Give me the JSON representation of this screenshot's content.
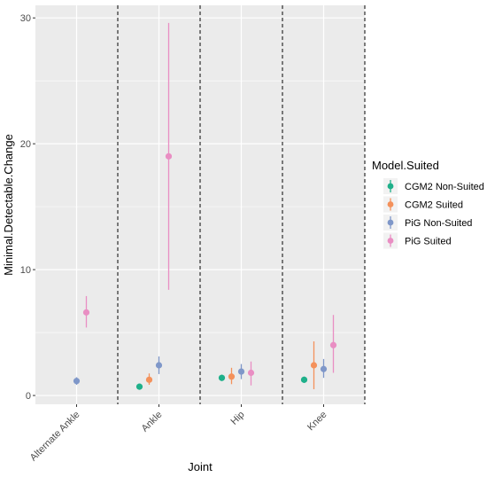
{
  "chart_data": {
    "type": "scatter",
    "subtype": "point-range with vertical error bars",
    "title": "",
    "xlabel": "Joint",
    "ylabel": "Minimal.Detectable.Change",
    "categories": [
      "Alternate Ankle",
      "Ankle",
      "Hip",
      "Knee"
    ],
    "ylim": [
      -0.7,
      31
    ],
    "yticks": [
      0,
      10,
      20,
      30
    ],
    "grid": true,
    "background": "#ebebeb",
    "category_separators": "dashed vertical lines between categories",
    "legend": {
      "title": "Model.Suited",
      "position": "right",
      "entries": [
        "CGM2 Non-Suited",
        "CGM2 Suited",
        "PiG Non-Suited",
        "PiG Suited"
      ]
    },
    "series": [
      {
        "name": "CGM2 Non-Suited",
        "color": "#1fb08a",
        "points": [
          {
            "x": "Ankle",
            "y": 0.7,
            "low": 0.55,
            "high": 0.85
          },
          {
            "x": "Hip",
            "y": 1.4,
            "low": 1.15,
            "high": 1.65
          },
          {
            "x": "Knee",
            "y": 1.25,
            "low": 1.0,
            "high": 1.5
          }
        ]
      },
      {
        "name": "CGM2 Suited",
        "color": "#f4915b",
        "points": [
          {
            "x": "Ankle",
            "y": 1.25,
            "low": 0.85,
            "high": 1.75
          },
          {
            "x": "Hip",
            "y": 1.5,
            "low": 0.9,
            "high": 2.2
          },
          {
            "x": "Knee",
            "y": 2.4,
            "low": 0.5,
            "high": 4.3
          }
        ]
      },
      {
        "name": "PiG Non-Suited",
        "color": "#7f97c9",
        "points": [
          {
            "x": "Alternate Ankle",
            "y": 1.15,
            "low": 0.85,
            "high": 1.45
          },
          {
            "x": "Ankle",
            "y": 2.4,
            "low": 1.7,
            "high": 3.1
          },
          {
            "x": "Hip",
            "y": 1.9,
            "low": 1.3,
            "high": 2.5
          },
          {
            "x": "Knee",
            "y": 2.1,
            "low": 1.4,
            "high": 2.9
          }
        ]
      },
      {
        "name": "PiG Suited",
        "color": "#e98ec3",
        "points": [
          {
            "x": "Alternate Ankle",
            "y": 6.6,
            "low": 5.4,
            "high": 7.9
          },
          {
            "x": "Ankle",
            "y": 19.0,
            "low": 8.4,
            "high": 29.6
          },
          {
            "x": "Hip",
            "y": 1.8,
            "low": 0.8,
            "high": 2.7
          },
          {
            "x": "Knee",
            "y": 4.0,
            "low": 1.8,
            "high": 6.4
          }
        ]
      }
    ]
  }
}
